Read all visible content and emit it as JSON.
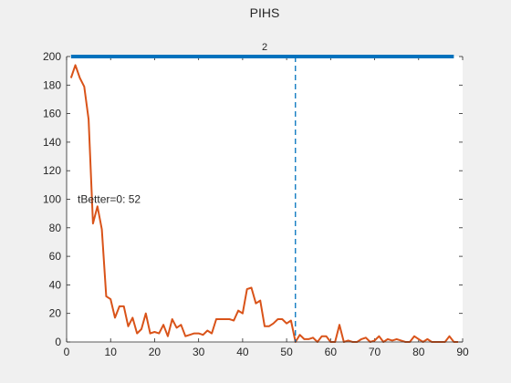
{
  "chart_data": {
    "type": "line",
    "title": "PIHS",
    "xlabel": "",
    "ylabel": "",
    "xlim": [
      0,
      90
    ],
    "ylim": [
      0,
      200
    ],
    "xticks": [
      0,
      10,
      20,
      30,
      40,
      50,
      60,
      70,
      80,
      90
    ],
    "yticks": [
      0,
      20,
      40,
      60,
      80,
      100,
      120,
      140,
      160,
      180,
      200
    ],
    "grid": false,
    "colors": {
      "series": "#d95319",
      "reference": "#0072bd",
      "background": "#f0f0f0",
      "axes": "#ffffff"
    },
    "series": [
      {
        "x": [
          1,
          2,
          3,
          4,
          5,
          6,
          7,
          8,
          9,
          10,
          11,
          12,
          13,
          14,
          15,
          16,
          17,
          18,
          19,
          20,
          21,
          22,
          23,
          24,
          25,
          26,
          27,
          28,
          29,
          30,
          31,
          32,
          33,
          34,
          35,
          36,
          37,
          38,
          39,
          40,
          41,
          42,
          43,
          44,
          45,
          46,
          47,
          48,
          49,
          50,
          51,
          52,
          53,
          54,
          55,
          56,
          57,
          58,
          59,
          60,
          61,
          62,
          63,
          64,
          65,
          66,
          67,
          68,
          69,
          70,
          71,
          72,
          73,
          74,
          75,
          76,
          77,
          78,
          79,
          80,
          81,
          82,
          83,
          84,
          85,
          86,
          87,
          88,
          89
        ],
        "values": [
          185,
          194,
          185,
          179,
          156,
          83,
          95,
          79,
          32,
          30,
          17,
          25,
          25,
          11,
          17,
          6,
          9,
          20,
          6,
          7,
          6,
          12,
          4,
          16,
          10,
          12,
          4,
          5,
          6,
          6,
          5,
          8,
          6,
          16,
          16,
          16,
          16,
          15,
          22,
          20,
          37,
          38,
          27,
          29,
          11,
          11,
          13,
          16,
          16,
          13,
          15,
          0,
          5,
          2,
          2,
          3,
          0,
          4,
          4,
          0,
          0,
          12,
          0,
          1,
          0,
          0,
          2,
          3,
          0,
          1,
          4,
          0,
          2,
          1,
          2,
          1,
          0,
          0,
          4,
          2,
          0,
          2,
          0,
          0,
          0,
          0,
          4,
          0,
          0
        ]
      }
    ],
    "reference_lines": [
      {
        "orientation": "horizontal",
        "y": 200,
        "label": "2"
      },
      {
        "orientation": "vertical",
        "x": 52,
        "style": "dashed"
      }
    ],
    "annotations": [
      {
        "text": "tBetter=0: 52",
        "x": 2.5,
        "y": 100
      }
    ]
  }
}
